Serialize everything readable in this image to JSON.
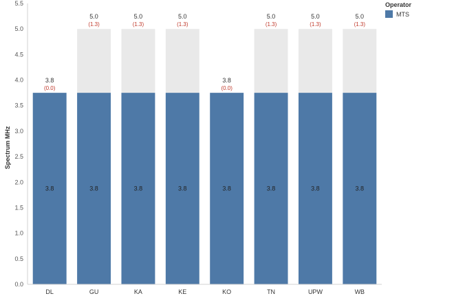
{
  "chart_data": {
    "type": "bar",
    "ylabel": "Spectrum MHz",
    "xlabel": "",
    "ylim": [
      0,
      5.5
    ],
    "ytick_labels": [
      "0.0",
      "0.5",
      "1.0",
      "1.5",
      "2.0",
      "2.5",
      "3.0",
      "3.5",
      "4.0",
      "4.5",
      "5.0",
      "5.5"
    ],
    "categories": [
      "DL",
      "GU",
      "KA",
      "KE",
      "KO",
      "TN",
      "UPW",
      "WB"
    ],
    "series": [
      {
        "name": "MTS",
        "color": "#4e79a7",
        "values": [
          3.75,
          3.75,
          3.75,
          3.75,
          3.75,
          3.75,
          3.75,
          3.75
        ]
      }
    ],
    "total_values": [
      3.75,
      5.0,
      5.0,
      5.0,
      3.75,
      5.0,
      5.0,
      5.0
    ],
    "background_bar_color": "#e9e9e9",
    "bar_labels": [
      "3.8",
      "3.8",
      "3.8",
      "3.8",
      "3.8",
      "3.8",
      "3.8",
      "3.8"
    ],
    "total_labels": [
      "3.8",
      "5.0",
      "5.0",
      "5.0",
      "3.8",
      "5.0",
      "5.0",
      "5.0"
    ],
    "delta_labels": [
      "(0.0)",
      "(1.3)",
      "(1.3)",
      "(1.3)",
      "(0.0)",
      "(1.3)",
      "(1.3)",
      "(1.3)"
    ],
    "delta_color": "#c0392b",
    "grid": false,
    "legend": {
      "title": "Operator",
      "position": "top-right"
    }
  }
}
